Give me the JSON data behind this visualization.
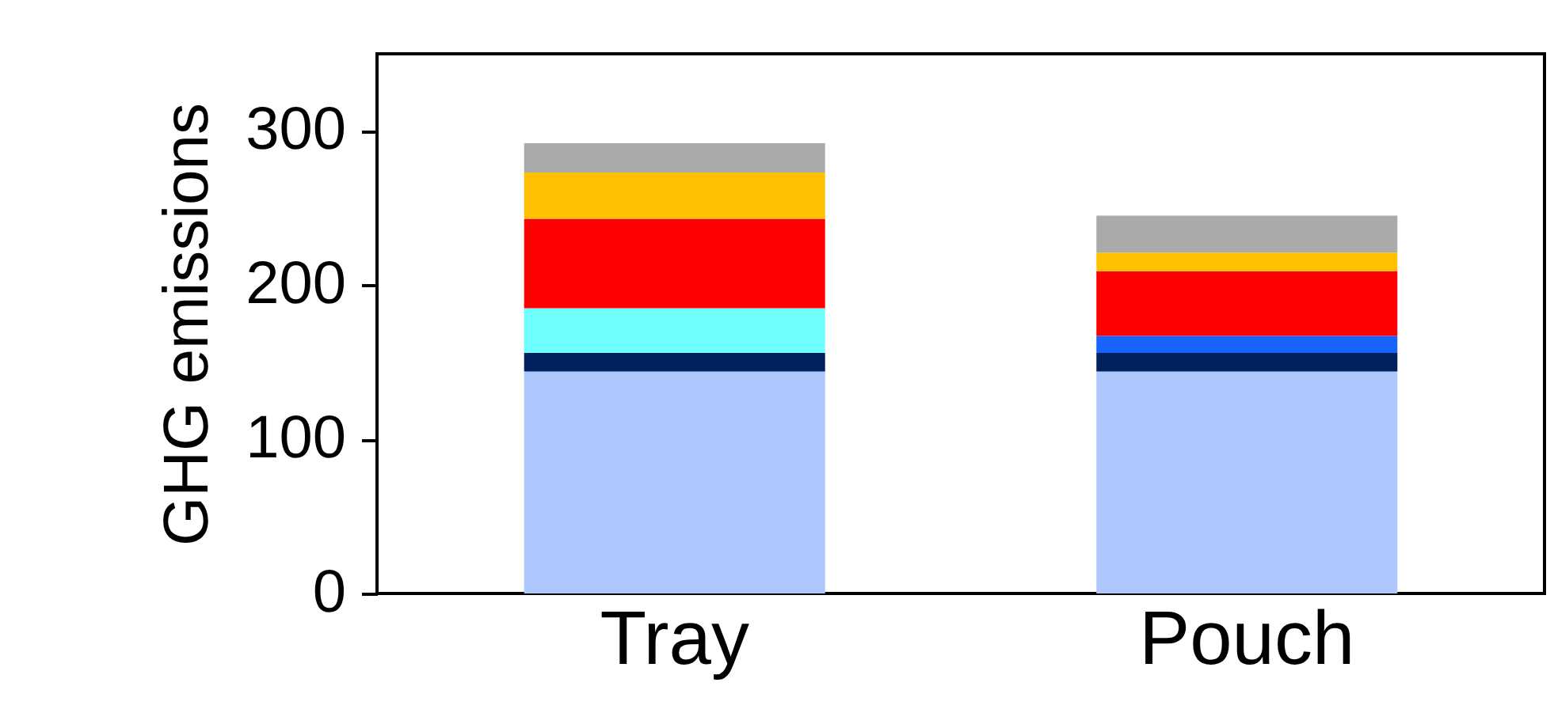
{
  "chart_data": {
    "type": "bar",
    "stacked": true,
    "ylabel": "GHG emissions",
    "categories": [
      "Tray",
      "Pouch"
    ],
    "ylim": [
      0,
      350
    ],
    "yticks": [
      0,
      100,
      200,
      300
    ],
    "grid": false,
    "legend": false,
    "series": [
      {
        "color": "#aec8fd",
        "values": [
          144,
          144
        ]
      },
      {
        "color": "#002060",
        "values": [
          12,
          12
        ]
      },
      {
        "color": "#1763fe",
        "values": [
          0,
          11
        ]
      },
      {
        "color": "#6cfffe",
        "values": [
          29,
          0
        ]
      },
      {
        "color": "#ff0000",
        "values": [
          58,
          42
        ]
      },
      {
        "color": "#ffc000",
        "values": [
          30,
          12
        ]
      },
      {
        "color": "#aaaaaa",
        "values": [
          19,
          24
        ]
      }
    ]
  }
}
